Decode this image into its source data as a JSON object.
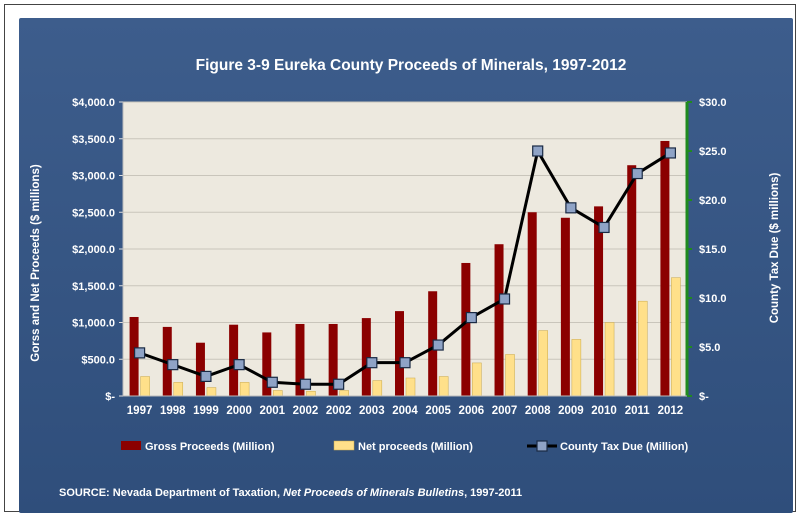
{
  "chart_data": {
    "type": "bar",
    "title": "Figure 3-9 Eureka County Proceeds of Minerals, 1997-2012",
    "ylabel": "Gorss and Net Proceeds ($ millions)",
    "y2label": "County Tax Due ($ millions)",
    "ylim": [
      0,
      4000
    ],
    "y2lim": [
      0,
      30
    ],
    "yticks": [
      "$-",
      "$500.0",
      "$1,000.0",
      "$1,500.0",
      "$2,000.0",
      "$2,500.0",
      "$3,000.0",
      "$3,500.0",
      "$4,000.0"
    ],
    "y2ticks": [
      "$-",
      "$5.0",
      "$10.0",
      "$15.0",
      "$20.0",
      "$25.0",
      "$30.0"
    ],
    "categories": [
      "1997",
      "1998",
      "1999",
      "2000",
      "2001",
      "2002",
      "2002",
      "2003",
      "2004",
      "2005",
      "2006",
      "2007",
      "2008",
      "2009",
      "2010",
      "2011",
      "2012"
    ],
    "series": [
      {
        "name": "Gross Proceeds (Million)",
        "type": "bar",
        "color": "#8b0000",
        "values": [
          1075,
          940,
          725,
          970,
          865,
          980,
          980,
          1060,
          1155,
          1425,
          1810,
          2065,
          2500,
          2425,
          2580,
          3140,
          3470
        ]
      },
      {
        "name": "Net proceeds (Million)",
        "type": "bar",
        "color": "#ffe08a",
        "values": [
          265,
          185,
          115,
          185,
          75,
          65,
          75,
          210,
          245,
          265,
          450,
          565,
          890,
          770,
          1000,
          1290,
          1610
        ]
      },
      {
        "name": "County Tax Due (Million)",
        "type": "line",
        "axis": "right",
        "color": "#000000",
        "marker_color": "#8fa3c6",
        "values": [
          4.4,
          3.2,
          2.0,
          3.2,
          1.4,
          1.2,
          1.2,
          3.4,
          3.4,
          5.2,
          8.0,
          9.9,
          25.0,
          19.2,
          17.2,
          22.7,
          24.8
        ]
      }
    ],
    "legend_position": "bottom",
    "grid": "horizontal",
    "plot_background": "#ede9df"
  },
  "source": {
    "prefix": "SOURCE: Nevada Department of Taxation, ",
    "italic": "Net Proceeds of Minerals Bulletins",
    "suffix": ", 1997-2011"
  }
}
